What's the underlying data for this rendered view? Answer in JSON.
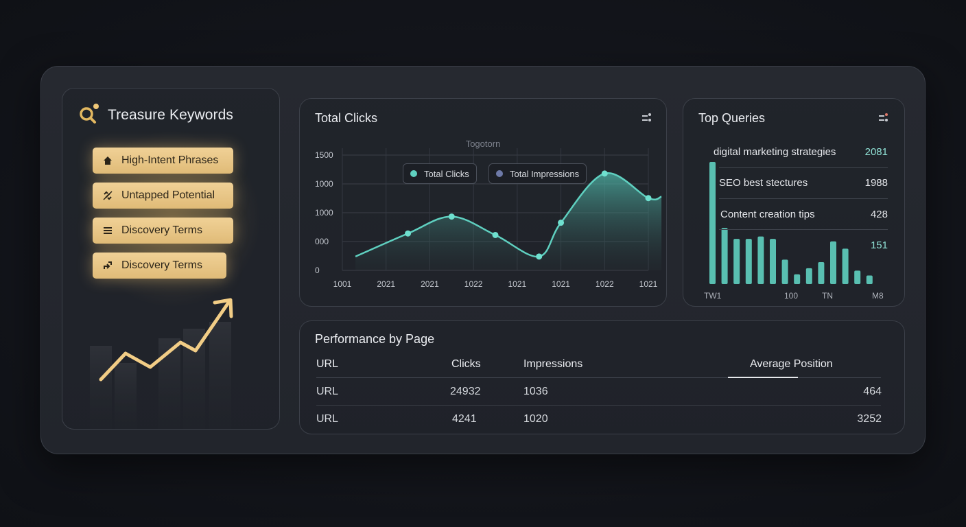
{
  "sidebar": {
    "title": "Treasure Keywords",
    "items": [
      {
        "label": "High-Intent Phrases",
        "icon": "home-icon"
      },
      {
        "label": "Untapped Potential",
        "icon": "link-off-icon"
      },
      {
        "label": "Discovery Terms",
        "icon": "list-icon"
      },
      {
        "label": "Discovery Terms",
        "icon": "share-icon"
      }
    ],
    "accent": "#e2b860"
  },
  "clicks_card": {
    "title": "Total Clicks",
    "subtitle": "Togotorn",
    "legend": [
      {
        "label": "Total Clicks",
        "color": "#5fd0c0"
      },
      {
        "label": "Total Impressions",
        "color": "#6e7aa8"
      }
    ]
  },
  "queries_card": {
    "title": "Top Queries",
    "rows": [
      {
        "query": "digital marketing strategies",
        "value": "2081"
      },
      {
        "query": "SEO best stectures",
        "value": "1988"
      },
      {
        "query": "Content creation tips",
        "value": "428"
      },
      {
        "query": "",
        "value": "151"
      }
    ],
    "x_labels": [
      "TW1",
      "100",
      "TN",
      "M8"
    ]
  },
  "performance": {
    "title": "Performance by Page",
    "headers": {
      "url": "URL",
      "clicks": "Clicks",
      "impressions": "Impressions",
      "position": "Average Position"
    },
    "rows": [
      {
        "url": "URL",
        "clicks": "24932",
        "impressions": "1036",
        "position": "464"
      },
      {
        "url": "URL",
        "clicks": "4241",
        "impressions": "1020",
        "position": "3252"
      }
    ]
  },
  "chart_data": [
    {
      "type": "area",
      "title": "Total Clicks",
      "subtitle": "Togotorn",
      "y_ticks": [
        "0",
        "000",
        "1000",
        "1000",
        "1500"
      ],
      "x_ticks": [
        "1001",
        "2021",
        "2021",
        "1022",
        "1021",
        "1021",
        "1022",
        "1021"
      ],
      "series": [
        {
          "name": "Total Clicks",
          "x": [
            0.3,
            1.5,
            2.5,
            3.5,
            4.5,
            5.0,
            6.0,
            7.0,
            7.3
          ],
          "values": [
            90,
            240,
            350,
            230,
            90,
            310,
            630,
            470,
            480
          ]
        }
      ],
      "ylim": [
        0,
        750
      ],
      "grid": true,
      "legend": "top-center"
    },
    {
      "type": "bar",
      "title": "Top Queries",
      "x_labels": [
        "TW1",
        "100",
        "TN",
        "M8"
      ],
      "series": [
        {
          "values": [
            100,
            46,
            37,
            37,
            39,
            37,
            20,
            8,
            13,
            18,
            35,
            29,
            11,
            7
          ]
        }
      ],
      "ylim": [
        0,
        100
      ],
      "color": "#5fd0c0"
    }
  ]
}
